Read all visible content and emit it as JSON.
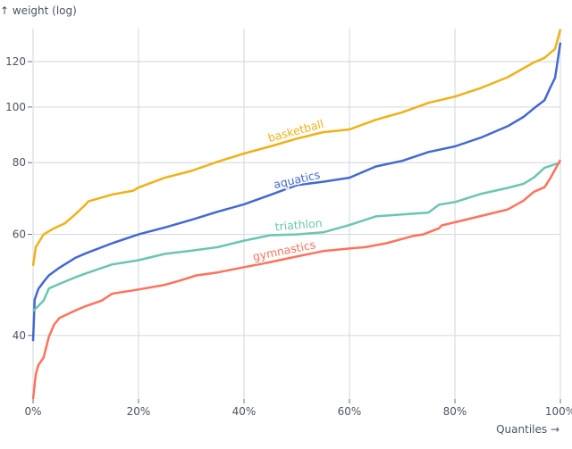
{
  "chart_data": {
    "type": "line",
    "title": "",
    "xlabel": "Quantiles →",
    "ylabel": "↑ weight (log)",
    "yscale": "log",
    "xlim": [
      0,
      1
    ],
    "ylim": [
      31,
      137
    ],
    "grid": true,
    "legend": "none (inline labels)",
    "x_ticks": [
      {
        "value": 0,
        "label": "0%"
      },
      {
        "value": 0.2,
        "label": "20%"
      },
      {
        "value": 0.4,
        "label": "40%"
      },
      {
        "value": 0.6,
        "label": "60%"
      },
      {
        "value": 0.8,
        "label": "80%"
      },
      {
        "value": 1,
        "label": "100%"
      }
    ],
    "y_ticks": [
      {
        "value": 40,
        "label": "40"
      },
      {
        "value": 60,
        "label": "60"
      },
      {
        "value": 80,
        "label": "80"
      },
      {
        "value": 100,
        "label": "100"
      },
      {
        "value": 120,
        "label": "120"
      }
    ],
    "series": [
      {
        "name": "basketball",
        "color": "#efb118",
        "label_at": 0.45,
        "points": [
          [
            0,
            52.9
          ],
          [
            0.005,
            57
          ],
          [
            0.02,
            60
          ],
          [
            0.04,
            61.5
          ],
          [
            0.06,
            62.7
          ],
          [
            0.08,
            65
          ],
          [
            0.1,
            67.7
          ],
          [
            0.105,
            68.5
          ],
          [
            0.15,
            70.4
          ],
          [
            0.19,
            71.5
          ],
          [
            0.2,
            72.4
          ],
          [
            0.25,
            75.3
          ],
          [
            0.3,
            77.4
          ],
          [
            0.35,
            80.3
          ],
          [
            0.4,
            83
          ],
          [
            0.45,
            85.4
          ],
          [
            0.5,
            88.1
          ],
          [
            0.55,
            90.4
          ],
          [
            0.6,
            91.4
          ],
          [
            0.65,
            95
          ],
          [
            0.7,
            97.9
          ],
          [
            0.75,
            101.7
          ],
          [
            0.8,
            104.3
          ],
          [
            0.85,
            108
          ],
          [
            0.9,
            112.7
          ],
          [
            0.95,
            119.6
          ],
          [
            0.97,
            121.8
          ],
          [
            0.99,
            126.3
          ],
          [
            1,
            136.6
          ]
        ]
      },
      {
        "name": "aquatics",
        "color": "#4269d0",
        "label_at": 0.46,
        "points": [
          [
            0,
            39.1
          ],
          [
            0.003,
            46.2
          ],
          [
            0.01,
            48.2
          ],
          [
            0.02,
            49.6
          ],
          [
            0.03,
            50.9
          ],
          [
            0.05,
            52.5
          ],
          [
            0.08,
            54.6
          ],
          [
            0.1,
            55.6
          ],
          [
            0.15,
            57.9
          ],
          [
            0.2,
            60
          ],
          [
            0.25,
            61.7
          ],
          [
            0.3,
            63.6
          ],
          [
            0.35,
            65.7
          ],
          [
            0.4,
            67.7
          ],
          [
            0.45,
            70.3
          ],
          [
            0.5,
            73.1
          ],
          [
            0.55,
            74.1
          ],
          [
            0.6,
            75.3
          ],
          [
            0.65,
            78.8
          ],
          [
            0.7,
            80.6
          ],
          [
            0.75,
            83.5
          ],
          [
            0.8,
            85.4
          ],
          [
            0.85,
            88.5
          ],
          [
            0.9,
            92.6
          ],
          [
            0.93,
            96.1
          ],
          [
            0.95,
            99.5
          ],
          [
            0.97,
            102.8
          ],
          [
            0.98,
            107.7
          ],
          [
            0.99,
            112.5
          ],
          [
            1,
            129.5
          ]
        ]
      },
      {
        "name": "triathlon",
        "color": "#6cc5b0",
        "label_at": 0.46,
        "points": [
          [
            0,
            44.1
          ],
          [
            0.02,
            46
          ],
          [
            0.03,
            48.3
          ],
          [
            0.05,
            49.2
          ],
          [
            0.08,
            50.5
          ],
          [
            0.1,
            51.3
          ],
          [
            0.15,
            53.2
          ],
          [
            0.2,
            54.1
          ],
          [
            0.25,
            55.5
          ],
          [
            0.3,
            56.2
          ],
          [
            0.35,
            57
          ],
          [
            0.4,
            58.5
          ],
          [
            0.45,
            59.8
          ],
          [
            0.5,
            60
          ],
          [
            0.55,
            60.5
          ],
          [
            0.6,
            62.3
          ],
          [
            0.65,
            64.5
          ],
          [
            0.7,
            65
          ],
          [
            0.75,
            65.5
          ],
          [
            0.77,
            67.6
          ],
          [
            0.8,
            68.3
          ],
          [
            0.85,
            70.6
          ],
          [
            0.9,
            72.3
          ],
          [
            0.93,
            73.5
          ],
          [
            0.95,
            75.4
          ],
          [
            0.97,
            78.4
          ],
          [
            1,
            80
          ]
        ]
      },
      {
        "name": "gymnastics",
        "color": "#ff725c",
        "label_at": 0.42,
        "points": [
          [
            0,
            31
          ],
          [
            0.005,
            34.2
          ],
          [
            0.01,
            35.5
          ],
          [
            0.02,
            36.6
          ],
          [
            0.03,
            39.8
          ],
          [
            0.04,
            41.8
          ],
          [
            0.05,
            42.9
          ],
          [
            0.08,
            44.2
          ],
          [
            0.1,
            45
          ],
          [
            0.13,
            46
          ],
          [
            0.15,
            47.3
          ],
          [
            0.2,
            48.1
          ],
          [
            0.25,
            49
          ],
          [
            0.28,
            49.9
          ],
          [
            0.31,
            50.9
          ],
          [
            0.35,
            51.5
          ],
          [
            0.4,
            52.6
          ],
          [
            0.45,
            53.7
          ],
          [
            0.5,
            54.9
          ],
          [
            0.55,
            56.1
          ],
          [
            0.6,
            56.7
          ],
          [
            0.63,
            57
          ],
          [
            0.67,
            57.9
          ],
          [
            0.7,
            58.9
          ],
          [
            0.72,
            59.6
          ],
          [
            0.74,
            60
          ],
          [
            0.77,
            61.5
          ],
          [
            0.775,
            62.2
          ],
          [
            0.8,
            63
          ],
          [
            0.85,
            64.6
          ],
          [
            0.9,
            66.3
          ],
          [
            0.93,
            68.7
          ],
          [
            0.95,
            71.2
          ],
          [
            0.97,
            72.5
          ],
          [
            0.98,
            74.9
          ],
          [
            1,
            80.9
          ]
        ]
      }
    ]
  }
}
